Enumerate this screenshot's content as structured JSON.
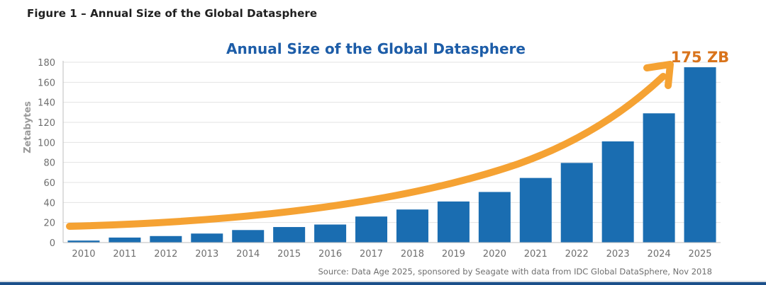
{
  "figure_label": "Figure 1 – Annual Size of the Global Datasphere",
  "source_note": "Source: Data Age 2025, sponsored by Seagate with data from IDC Global DataSphere, Nov 2018",
  "callout": "175 ZB",
  "colors": {
    "bar": "#1a6db1",
    "title": "#1d5da8",
    "arrow": "#f5a233",
    "callout": "#d9741c",
    "axis_text": "#6e6e6e",
    "grid": "#e3e3e3",
    "bottom_rule": "#1b4f8a"
  },
  "chart_data": {
    "type": "bar",
    "title": "Annual Size of the Global Datasphere",
    "xlabel": "",
    "ylabel": "Zetabytes",
    "categories": [
      "2010",
      "2011",
      "2012",
      "2013",
      "2014",
      "2015",
      "2016",
      "2017",
      "2018",
      "2019",
      "2020",
      "2021",
      "2022",
      "2023",
      "2024",
      "2025"
    ],
    "values": [
      2,
      5,
      6.5,
      9,
      12.5,
      15.5,
      18,
      26,
      33,
      41,
      50.5,
      64.5,
      79.5,
      101,
      129,
      175
    ],
    "yticks": [
      "0",
      "20",
      "40",
      "60",
      "80",
      "100",
      "120",
      "140",
      "160",
      "180"
    ],
    "ylim": [
      0,
      180
    ],
    "grid": true,
    "annotations": [
      "175 ZB"
    ]
  }
}
